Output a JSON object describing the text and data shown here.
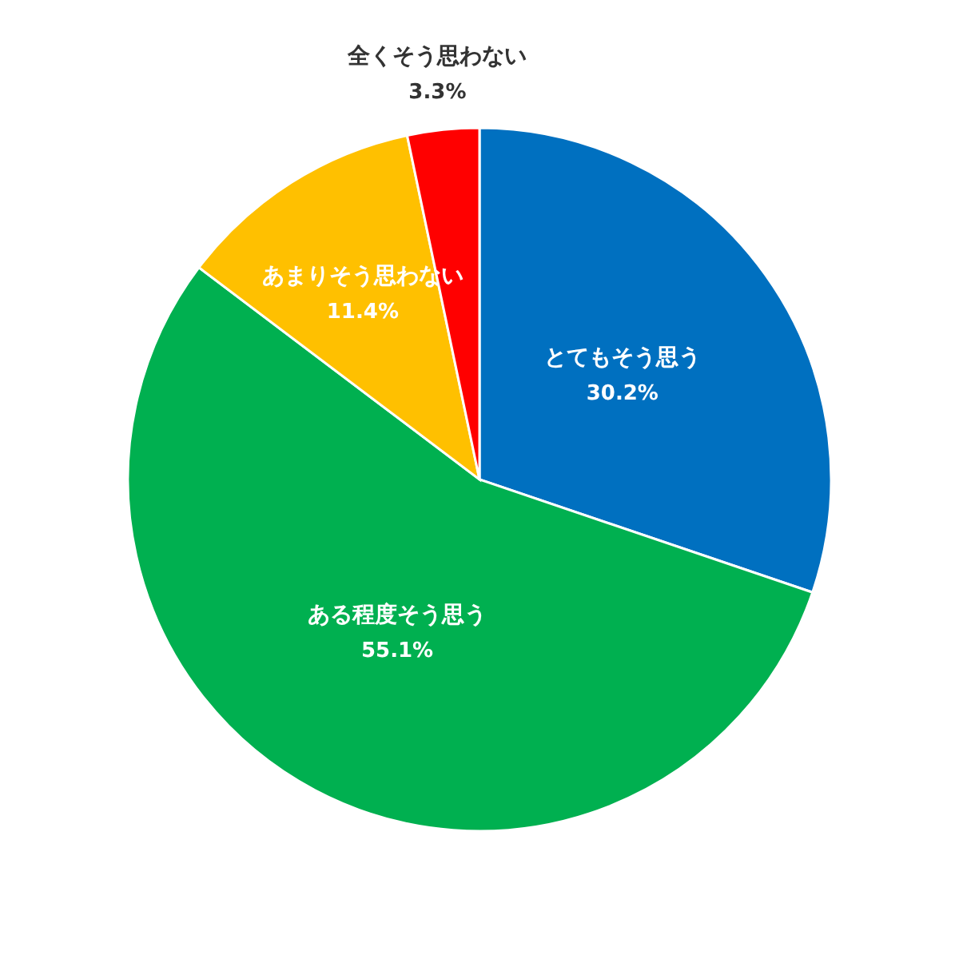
{
  "chart_data": {
    "type": "pie",
    "categories": [
      "とてもそう思う",
      "ある程度そう思う",
      "あまりそう思わない",
      "全くそう思わない"
    ],
    "values": [
      30.2,
      55.1,
      11.4,
      3.3
    ],
    "colors": [
      "#0070c0",
      "#00b050",
      "#ffc000",
      "#ff0000"
    ],
    "value_labels": [
      "30.2%",
      "55.1%",
      "11.4%",
      "3.3%"
    ],
    "legend": false
  }
}
